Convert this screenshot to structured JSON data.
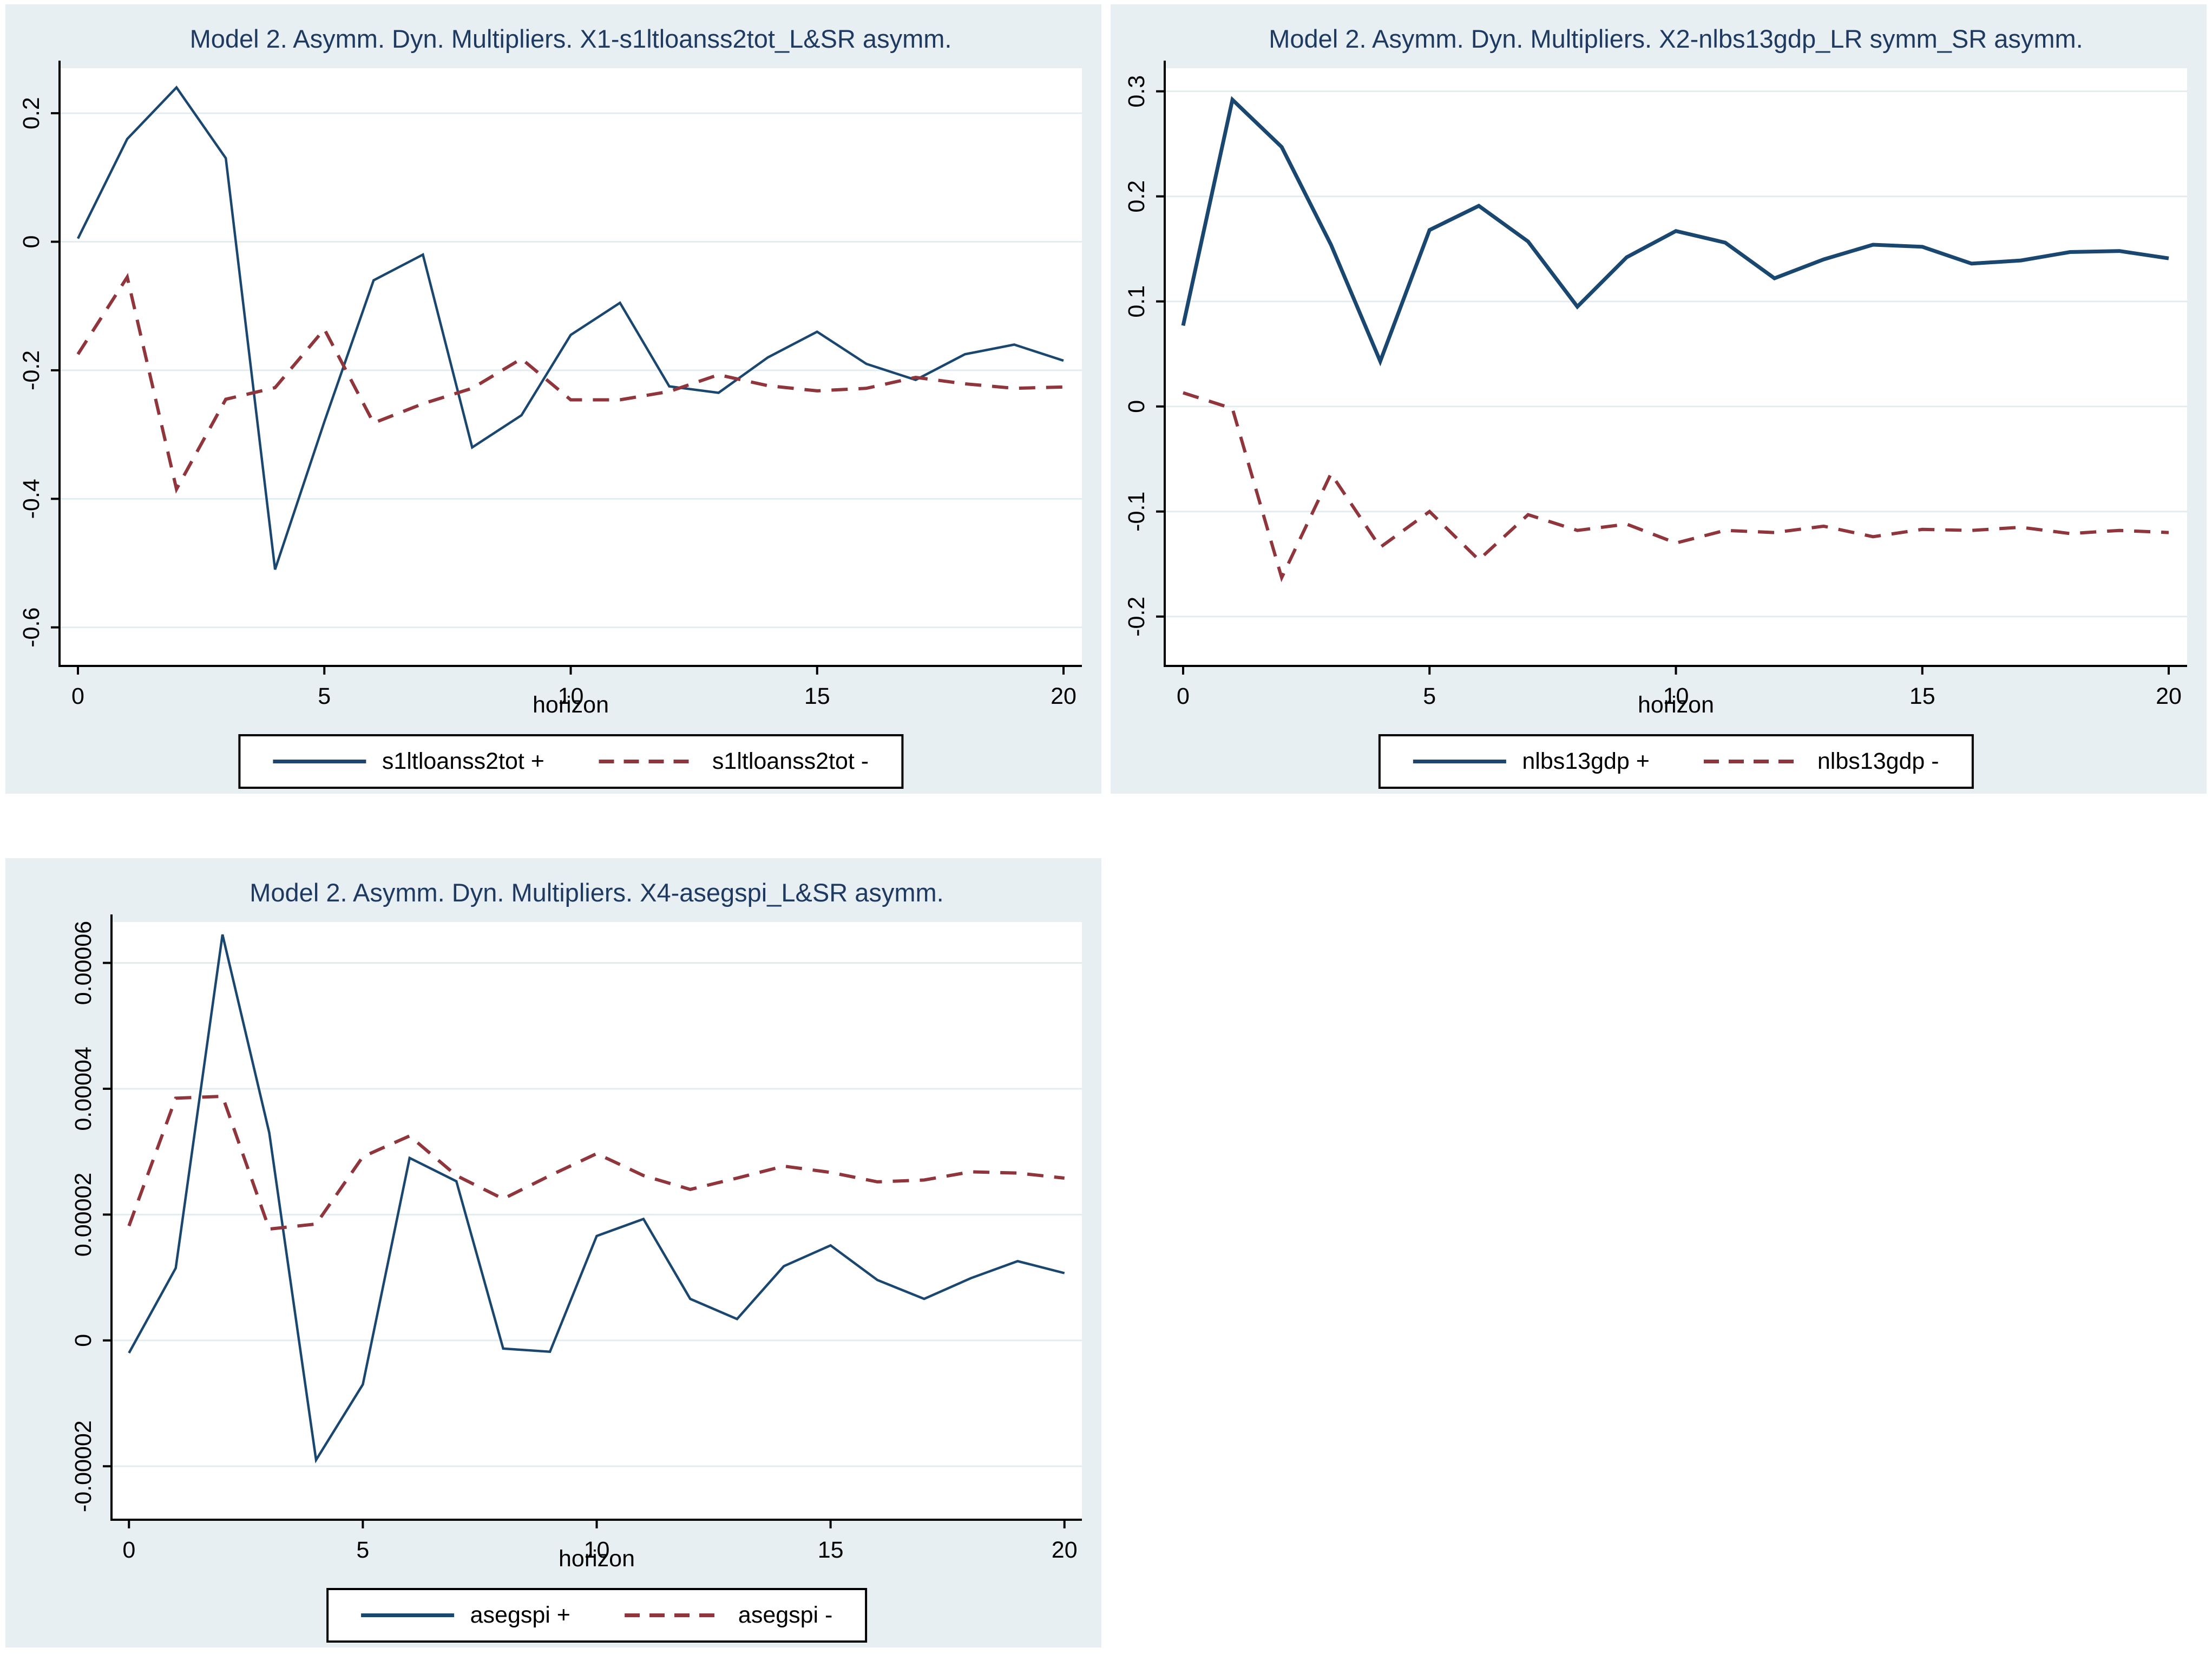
{
  "style": {
    "graph_background": "#e8eff3",
    "plot_background": "#ffffff",
    "gridline_color": "#e3edf0",
    "axis_color": "#000000",
    "title_color": "#1f3a60",
    "solid_line_color": "#1a476f",
    "dashed_line_color": "#90353b"
  },
  "chart_data": [
    {
      "type": "line",
      "title": "Model 2. Asymm. Dyn. Multipliers. X1-s1ltloanss2tot_L&SR asymm.",
      "xlabel": "horizon",
      "x": [
        0,
        1,
        2,
        3,
        4,
        5,
        6,
        7,
        8,
        9,
        10,
        11,
        12,
        13,
        14,
        15,
        16,
        17,
        18,
        19,
        20
      ],
      "x_ticks": [
        0,
        5,
        10,
        15,
        20
      ],
      "y_ticks": [
        "0.2",
        "0",
        "-0.2",
        "-0.4",
        "-0.6"
      ],
      "ylim": [
        -0.66,
        0.27
      ],
      "legend_position": "bottom-center",
      "grid": "horizontal",
      "series": [
        {
          "name": "s1ltloanss2tot +",
          "style": "solid",
          "color": "#1a476f",
          "width": 4.5,
          "values": [
            0.005,
            0.16,
            0.24,
            0.13,
            -0.51,
            -0.28,
            -0.06,
            -0.02,
            -0.32,
            -0.27,
            -0.145,
            -0.095,
            -0.225,
            -0.235,
            -0.18,
            -0.14,
            -0.19,
            -0.215,
            -0.175,
            -0.16,
            -0.185
          ]
        },
        {
          "name": "s1ltloanss2tot -",
          "style": "dashed",
          "color": "#90353b",
          "width": 6,
          "values": [
            -0.175,
            -0.055,
            -0.385,
            -0.245,
            -0.227,
            -0.136,
            -0.282,
            -0.252,
            -0.228,
            -0.182,
            -0.246,
            -0.246,
            -0.233,
            -0.207,
            -0.224,
            -0.232,
            -0.228,
            -0.211,
            -0.221,
            -0.228,
            -0.226
          ]
        }
      ]
    },
    {
      "type": "line",
      "title": "Model 2. Asymm. Dyn. Multipliers. X2-nlbs13gdp_LR symm_SR asymm.",
      "xlabel": "horizon",
      "x": [
        0,
        1,
        2,
        3,
        4,
        5,
        6,
        7,
        8,
        9,
        10,
        11,
        12,
        13,
        14,
        15,
        16,
        17,
        18,
        19,
        20
      ],
      "x_ticks": [
        0,
        5,
        10,
        15,
        20
      ],
      "y_ticks": [
        "0.3",
        "0.2",
        "0.1",
        "0",
        "-0.1",
        "-0.2"
      ],
      "ylim": [
        -0.247,
        0.322
      ],
      "legend_position": "bottom-center",
      "grid": "horizontal",
      "series": [
        {
          "name": "nlbs13gdp +",
          "style": "solid",
          "color": "#1a476f",
          "width": 7,
          "values": [
            0.077,
            0.292,
            0.247,
            0.154,
            0.043,
            0.168,
            0.191,
            0.157,
            0.095,
            0.142,
            0.167,
            0.156,
            0.122,
            0.14,
            0.154,
            0.152,
            0.136,
            0.139,
            0.147,
            0.148,
            0.141
          ]
        },
        {
          "name": "nlbs13gdp -",
          "style": "dashed",
          "color": "#90353b",
          "width": 6,
          "values": [
            0.013,
            -0.002,
            -0.163,
            -0.064,
            -0.134,
            -0.1,
            -0.146,
            -0.103,
            -0.118,
            -0.112,
            -0.13,
            -0.118,
            -0.12,
            -0.114,
            -0.124,
            -0.117,
            -0.118,
            -0.115,
            -0.121,
            -0.118,
            -0.12
          ]
        }
      ]
    },
    {
      "type": "line",
      "title": "Model 2. Asymm. Dyn. Multipliers. X4-asegspi_L&SR asymm.",
      "xlabel": "horizon",
      "x": [
        0,
        1,
        2,
        3,
        4,
        5,
        6,
        7,
        8,
        9,
        10,
        11,
        12,
        13,
        14,
        15,
        16,
        17,
        18,
        19,
        20
      ],
      "x_ticks": [
        0,
        5,
        10,
        15,
        20
      ],
      "y_ticks": [
        "0.00006",
        "0.00004",
        "0.00002",
        "0",
        "-0.00002"
      ],
      "ylim": [
        -2.85e-05,
        6.65e-05
      ],
      "legend_position": "bottom-center",
      "grid": "horizontal",
      "series": [
        {
          "name": "asegspi +",
          "style": "solid",
          "color": "#1a476f",
          "width": 4.5,
          "values": [
            -2e-06,
            1.15e-05,
            6.45e-05,
            3.3e-05,
            -1.9e-05,
            -7e-06,
            2.9e-05,
            2.53e-05,
            -1.3e-06,
            -1.8e-06,
            1.66e-05,
            1.93e-05,
            6.6e-06,
            3.4e-06,
            1.18e-05,
            1.51e-05,
            9.6e-06,
            6.6e-06,
            9.9e-06,
            1.26e-05,
            1.07e-05
          ]
        },
        {
          "name": "asegspi -",
          "style": "dashed",
          "color": "#90353b",
          "width": 6,
          "values": [
            1.82e-05,
            3.85e-05,
            3.88e-05,
            1.77e-05,
            1.85e-05,
            2.92e-05,
            3.25e-05,
            2.62e-05,
            2.25e-05,
            2.62e-05,
            2.97e-05,
            2.62e-05,
            2.4e-05,
            2.58e-05,
            2.77e-05,
            2.67e-05,
            2.52e-05,
            2.55e-05,
            2.68e-05,
            2.66e-05,
            2.58e-05
          ]
        }
      ]
    }
  ]
}
